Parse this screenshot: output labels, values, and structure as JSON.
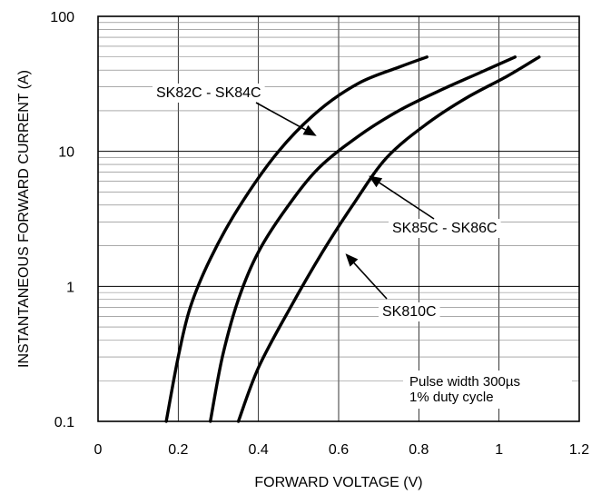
{
  "chart_data": {
    "type": "line",
    "xlabel": "FORWARD VOLTAGE (V)",
    "ylabel": "INSTANTANEOUS FORWARD CURRENT (A)",
    "xlim": [
      0,
      1.2
    ],
    "ylim": [
      0.1,
      100
    ],
    "yscale": "log",
    "x_ticks": [
      "0",
      "0.2",
      "0.4",
      "0.6",
      "0.8",
      "1",
      "1.2"
    ],
    "y_ticks": [
      "0.1",
      "1",
      "10",
      "100"
    ],
    "grid": true,
    "note_line1": "Pulse width 300µs",
    "note_line2": "1% duty cycle",
    "series": [
      {
        "name": "SK82C - SK84C",
        "x": [
          0.17,
          0.2,
          0.23,
          0.28,
          0.35,
          0.45,
          0.55,
          0.65,
          0.75,
          0.82
        ],
        "y": [
          0.1,
          0.3,
          0.7,
          1.6,
          3.8,
          10,
          20,
          32,
          42,
          50
        ]
      },
      {
        "name": "SK85C - SK86C",
        "x": [
          0.28,
          0.31,
          0.35,
          0.4,
          0.47,
          0.55,
          0.65,
          0.75,
          0.85,
          0.95,
          1.04
        ],
        "y": [
          0.1,
          0.3,
          0.8,
          1.8,
          3.8,
          7.5,
          13,
          20,
          28,
          38,
          50
        ]
      },
      {
        "name": "SK810C",
        "x": [
          0.35,
          0.4,
          0.48,
          0.56,
          0.64,
          0.72,
          0.82,
          0.92,
          1.02,
          1.1
        ],
        "y": [
          0.1,
          0.25,
          0.7,
          1.8,
          4.2,
          9,
          16,
          25,
          36,
          50
        ]
      }
    ],
    "annotations": [
      {
        "text": "SK82C - SK84C",
        "series": 0,
        "point_x": 0.545,
        "point_y": 13
      },
      {
        "text": "SK85C - SK86C",
        "series": 1,
        "point_x": 0.675,
        "point_y": 6.6
      },
      {
        "text": "SK810C",
        "series": 2,
        "point_x": 0.617,
        "point_y": 1.75
      }
    ]
  }
}
